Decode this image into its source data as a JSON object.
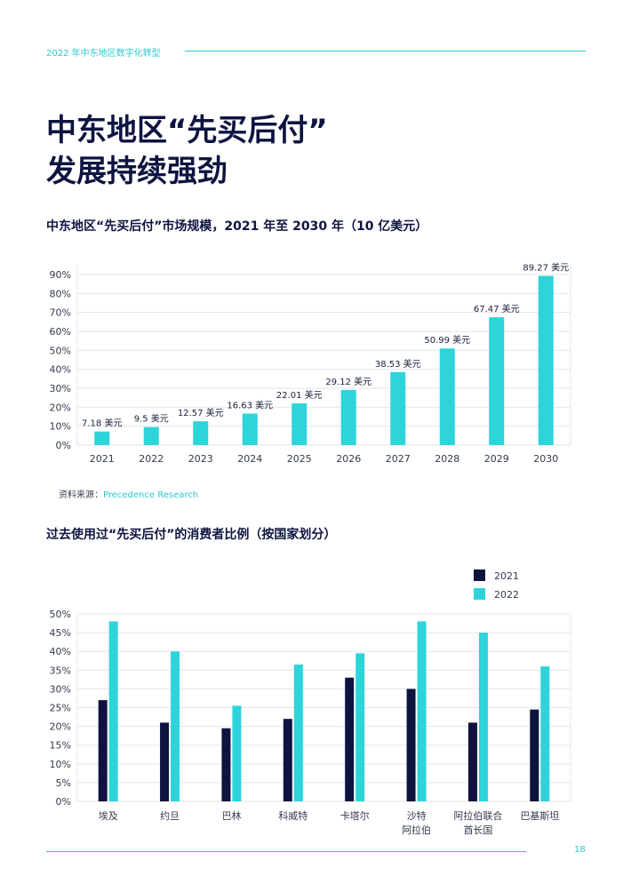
{
  "header": {
    "title": "2022 年中东地区数字化转型"
  },
  "page_title": {
    "line1": "中东地区“先买后付”",
    "line2": "发展持续强劲"
  },
  "source": {
    "prefix": "资料来源：",
    "name": "Precedence Research"
  },
  "footer": {
    "page_number": "18"
  },
  "colors": {
    "navy": "#0e1440",
    "teal": "#2dd4da",
    "grid": "#e3e5ea",
    "axis_text": "#333a4d"
  },
  "chart_data": [
    {
      "type": "bar",
      "title": "中东地区“先买后付”市场规模，2021 年至 2030 年（10 亿美元）",
      "categories": [
        "2021",
        "2022",
        "2023",
        "2024",
        "2025",
        "2026",
        "2027",
        "2028",
        "2029",
        "2030"
      ],
      "values": [
        7.18,
        9.5,
        12.57,
        16.63,
        22.01,
        29.12,
        38.53,
        50.99,
        67.47,
        89.27
      ],
      "data_labels": [
        "7.18 美元",
        "9.5 美元",
        "12.57 美元",
        "16.63 美元",
        "22.01 美元",
        "29.12 美元",
        "38.53 美元",
        "50.99 美元",
        "67.47 美元",
        "89.27 美元"
      ],
      "y_ticks": [
        "0%",
        "10%",
        "20%",
        "30%",
        "40%",
        "50%",
        "60%",
        "70%",
        "80%",
        "90%"
      ],
      "ylim": [
        0,
        90
      ],
      "grid": true,
      "legend": "none"
    },
    {
      "type": "bar",
      "title": "过去使用过“先买后付”的消费者比例（按国家划分）",
      "categories": [
        [
          "埃及"
        ],
        [
          "约旦"
        ],
        [
          "巴林"
        ],
        [
          "科威特"
        ],
        [
          "卡塔尔"
        ],
        [
          "沙特",
          "阿拉伯"
        ],
        [
          "阿拉伯联合",
          "酋长国"
        ],
        [
          "巴基斯坦"
        ]
      ],
      "series": [
        {
          "name": "2021",
          "values": [
            27,
            21,
            19.5,
            22,
            33,
            30,
            21,
            24.5
          ]
        },
        {
          "name": "2022",
          "values": [
            48,
            40,
            25.5,
            36.5,
            39.5,
            48,
            45,
            36
          ]
        }
      ],
      "y_ticks": [
        "0%",
        "5%",
        "10%",
        "15%",
        "20%",
        "25%",
        "30%",
        "35%",
        "40%",
        "45%",
        "50%"
      ],
      "ylim": [
        0,
        50
      ],
      "grid": true,
      "legend": "top-right"
    }
  ]
}
